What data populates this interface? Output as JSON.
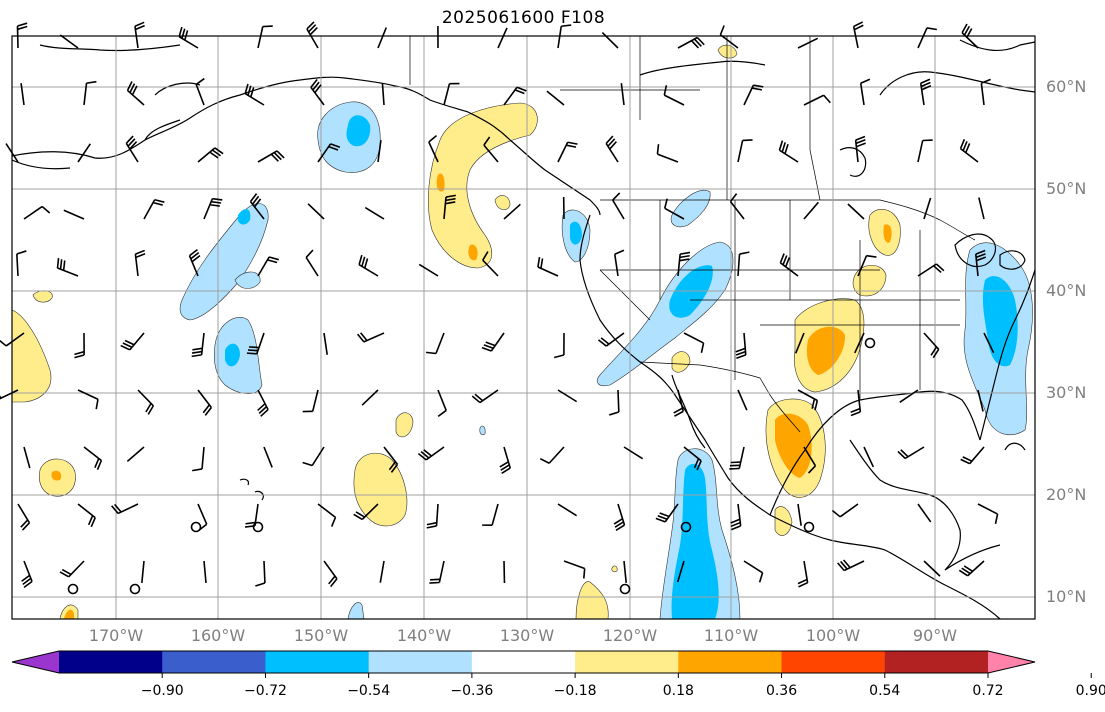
{
  "title": "2025061600 F108",
  "lat_labels": [
    "60°N",
    "50°N",
    "40°N",
    "30°N",
    "20°N",
    "10°N"
  ],
  "lon_labels": [
    "170°W",
    "160°W",
    "150°W",
    "140°W",
    "130°W",
    "120°W",
    "110°W",
    "100°W",
    "90°W"
  ],
  "colorbar": {
    "tick_labels": [
      "−0.90",
      "−0.72",
      "−0.54",
      "−0.36",
      "−0.18",
      "0.18",
      "0.36",
      "0.54",
      "0.72",
      "0.90"
    ],
    "colors": [
      "#9a36cd",
      "#00008b",
      "#3a5fcd",
      "#00bfff",
      "#b0e2ff",
      "#ffffff",
      "#ffec8b",
      "#ffa500",
      "#ff4500",
      "#b22222",
      "#ff82ab"
    ]
  },
  "map_colors": {
    "light_blue": "#b0e2ff",
    "blue": "#00bfff",
    "light_yellow": "#ffec8b",
    "orange": "#ffa500",
    "grid": "#a0a0a0"
  }
}
